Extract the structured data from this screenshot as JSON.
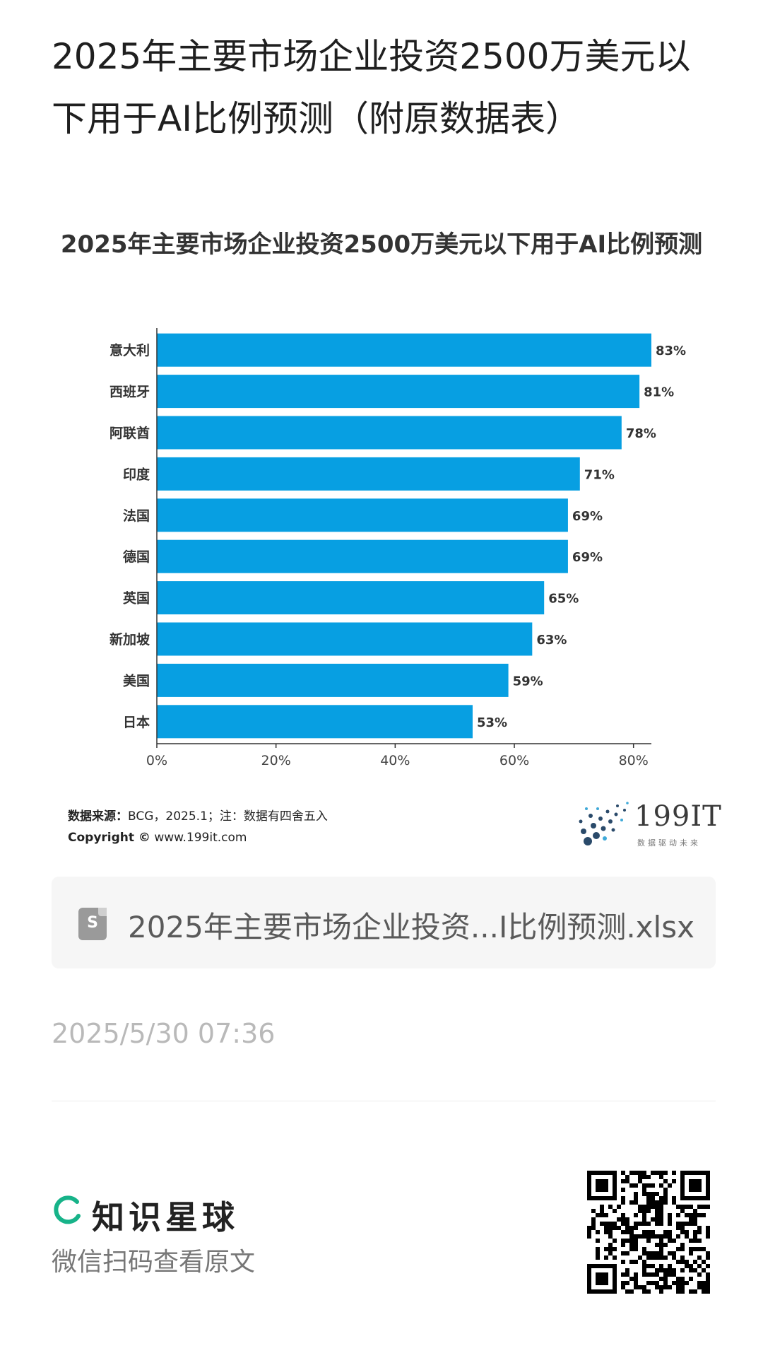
{
  "post": {
    "title": "2025年主要市场企业投资2500万美元以下用于AI比例预测（附原数据表）"
  },
  "chart_data": {
    "type": "bar",
    "orientation": "horizontal",
    "title": "2025年主要市场企业投资2500万美元以下用于AI比例预测",
    "categories": [
      "意大利",
      "西班牙",
      "阿联酋",
      "印度",
      "法国",
      "德国",
      "英国",
      "新加坡",
      "美国",
      "日本"
    ],
    "values": [
      83,
      81,
      78,
      71,
      69,
      69,
      65,
      63,
      59,
      53
    ],
    "value_labels": [
      "83%",
      "81%",
      "78%",
      "71%",
      "69%",
      "69%",
      "65%",
      "63%",
      "59%",
      "53%"
    ],
    "x_ticks": [
      "0%",
      "20%",
      "40%",
      "60%",
      "80%"
    ],
    "xlim": [
      0,
      83
    ],
    "xlabel": "",
    "ylabel": "",
    "grid": false,
    "bar_color": "#079fe2"
  },
  "source": {
    "label": "数据来源：",
    "text": "BCG，2025.1；注：数据有四舍五入",
    "copyright_label": "Copyright ©",
    "copyright_text": "www.199it.com"
  },
  "logo": {
    "text": "199IT",
    "subtitle": "数据驱动未来"
  },
  "attachment": {
    "icon": "spreadsheet-icon",
    "icon_letter": "S",
    "filename": "2025年主要市场企业投资...I比例预测.xlsx"
  },
  "timestamp": "2025/5/30 07:36",
  "footer": {
    "brand": "知识星球",
    "prompt": "微信扫码查看原文",
    "brand_color": "#17b389"
  }
}
